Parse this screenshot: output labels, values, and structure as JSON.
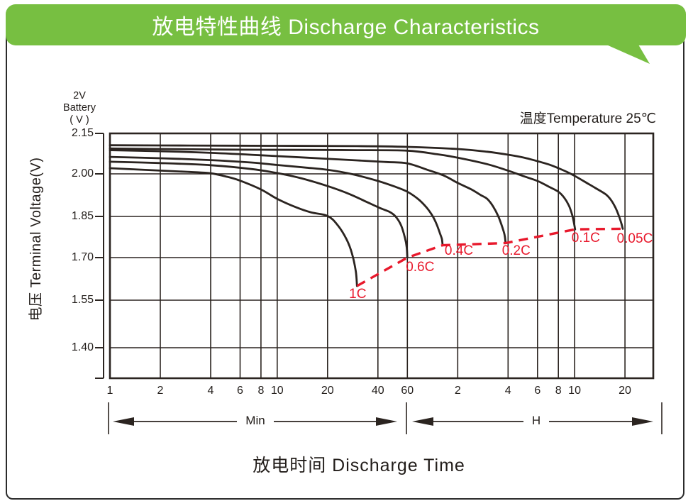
{
  "banner": {
    "title": "放电特性曲线  Discharge Characteristics"
  },
  "colors": {
    "banner_green": "#77bf41",
    "curve": "#2b2420",
    "grid": "#2b2420",
    "red": "#e8192c",
    "text": "#221d1a"
  },
  "chart_data": {
    "type": "line",
    "title": "放电特性曲线 Discharge Characteristics",
    "xlabel": "放电时间  Discharge Time",
    "ylabel": "电压 Terminal Voltage(V)",
    "y_axis_unit_note": "2V\nBattery\n( V )",
    "temperature_note": "温度Temperature 25℃",
    "x_scale": "log",
    "x_range_minutes": [
      1,
      1770
    ],
    "ylim": [
      1.29,
      2.15
    ],
    "grid": true,
    "x_units": [
      {
        "label": "Min",
        "range_minutes": [
          1,
          60
        ]
      },
      {
        "label": "H",
        "range_minutes": [
          60,
          1770
        ]
      }
    ],
    "x_ticks": [
      {
        "t": 1,
        "label": "1"
      },
      {
        "t": 2,
        "label": "2"
      },
      {
        "t": 4,
        "label": "4"
      },
      {
        "t": 6,
        "label": "6"
      },
      {
        "t": 8,
        "label": "8"
      },
      {
        "t": 10,
        "label": "10"
      },
      {
        "t": 20,
        "label": "20"
      },
      {
        "t": 40,
        "label": "40"
      },
      {
        "t": 60,
        "label": "60"
      },
      {
        "t": 120,
        "label": "2"
      },
      {
        "t": 240,
        "label": "4"
      },
      {
        "t": 360,
        "label": "6"
      },
      {
        "t": 480,
        "label": "8"
      },
      {
        "t": 600,
        "label": "10"
      },
      {
        "t": 1200,
        "label": "20"
      }
    ],
    "y_ticks": [
      {
        "v": 2.15,
        "label": "2.15"
      },
      {
        "v": 2.0,
        "label": "2.00"
      },
      {
        "v": 1.85,
        "label": "1.85"
      },
      {
        "v": 1.7,
        "label": "1.70"
      },
      {
        "v": 1.55,
        "label": "1.55"
      },
      {
        "v": 1.4,
        "label": "1.40"
      }
    ],
    "series": [
      {
        "name": "1C",
        "points": [
          [
            1,
            2.021
          ],
          [
            2,
            2.012
          ],
          [
            3,
            2.007
          ],
          [
            4,
            2.002
          ],
          [
            5,
            1.99
          ],
          [
            6,
            1.976
          ],
          [
            8,
            1.945
          ],
          [
            10,
            1.912
          ],
          [
            13,
            1.882
          ],
          [
            16,
            1.864
          ],
          [
            20,
            1.852
          ],
          [
            23,
            1.818
          ],
          [
            26,
            1.766
          ],
          [
            28,
            1.715
          ],
          [
            29.5,
            1.652
          ],
          [
            30,
            1.6
          ]
        ]
      },
      {
        "name": "0.6C",
        "points": [
          [
            1,
            2.045
          ],
          [
            2,
            2.04
          ],
          [
            4,
            2.032
          ],
          [
            7,
            2.018
          ],
          [
            10,
            2.003
          ],
          [
            14,
            1.984
          ],
          [
            20,
            1.957
          ],
          [
            27,
            1.929
          ],
          [
            34,
            1.902
          ],
          [
            41,
            1.88
          ],
          [
            47,
            1.866
          ],
          [
            51,
            1.85
          ],
          [
            55,
            1.818
          ],
          [
            58,
            1.773
          ],
          [
            59.5,
            1.737
          ],
          [
            60,
            1.7
          ]
        ]
      },
      {
        "name": "0.4C",
        "points": [
          [
            1,
            2.063
          ],
          [
            2,
            2.058
          ],
          [
            4,
            2.051
          ],
          [
            7,
            2.042
          ],
          [
            10,
            2.033
          ],
          [
            15,
            2.023
          ],
          [
            20,
            2.015
          ],
          [
            28,
            1.999
          ],
          [
            40,
            1.975
          ],
          [
            50,
            1.956
          ],
          [
            60,
            1.937
          ],
          [
            70,
            1.91
          ],
          [
            78,
            1.882
          ],
          [
            85,
            1.851
          ],
          [
            90,
            1.82
          ],
          [
            94,
            1.788
          ],
          [
            96.5,
            1.768
          ],
          [
            97.5,
            1.745
          ]
        ]
      },
      {
        "name": "0.2C",
        "points": [
          [
            1,
            2.088
          ],
          [
            2,
            2.084
          ],
          [
            4,
            2.078
          ],
          [
            8,
            2.069
          ],
          [
            15,
            2.06
          ],
          [
            30,
            2.05
          ],
          [
            45,
            2.044
          ],
          [
            60,
            2.039
          ],
          [
            80,
            2.014
          ],
          [
            100,
            1.993
          ],
          [
            120,
            1.968
          ],
          [
            145,
            1.945
          ],
          [
            165,
            1.925
          ],
          [
            180,
            1.912
          ],
          [
            195,
            1.886
          ],
          [
            210,
            1.85
          ],
          [
            222,
            1.81
          ],
          [
            229,
            1.782
          ],
          [
            232,
            1.753
          ]
        ]
      },
      {
        "name": "0.1C",
        "points": [
          [
            1,
            2.094
          ],
          [
            2,
            2.092
          ],
          [
            5,
            2.09
          ],
          [
            15,
            2.089
          ],
          [
            30,
            2.088
          ],
          [
            60,
            2.086
          ],
          [
            90,
            2.073
          ],
          [
            120,
            2.06
          ],
          [
            180,
            2.036
          ],
          [
            240,
            2.012
          ],
          [
            300,
            1.991
          ],
          [
            360,
            1.975
          ],
          [
            420,
            1.955
          ],
          [
            480,
            1.937
          ],
          [
            520,
            1.916
          ],
          [
            555,
            1.888
          ],
          [
            580,
            1.856
          ],
          [
            595,
            1.826
          ],
          [
            604,
            1.803
          ]
        ]
      },
      {
        "name": "0.05C",
        "points": [
          [
            1,
            2.106
          ],
          [
            3,
            2.105
          ],
          [
            10,
            2.104
          ],
          [
            30,
            2.103
          ],
          [
            60,
            2.1
          ],
          [
            120,
            2.092
          ],
          [
            180,
            2.082
          ],
          [
            240,
            2.071
          ],
          [
            300,
            2.06
          ],
          [
            360,
            2.047
          ],
          [
            420,
            2.035
          ],
          [
            480,
            2.021
          ],
          [
            540,
            2.007
          ],
          [
            600,
            1.993
          ],
          [
            700,
            1.97
          ],
          [
            800,
            1.95
          ],
          [
            920,
            1.928
          ],
          [
            990,
            1.908
          ],
          [
            1055,
            1.88
          ],
          [
            1110,
            1.848
          ],
          [
            1145,
            1.822
          ],
          [
            1164,
            1.805
          ]
        ]
      }
    ],
    "cutoff_line": {
      "style": "dashed",
      "points": [
        [
          30,
          1.6
        ],
        [
          60,
          1.7
        ],
        [
          97.5,
          1.745
        ],
        [
          232,
          1.753
        ],
        [
          604,
          1.803
        ],
        [
          1164,
          1.805
        ]
      ]
    },
    "legend_position": "on-curve-end"
  }
}
